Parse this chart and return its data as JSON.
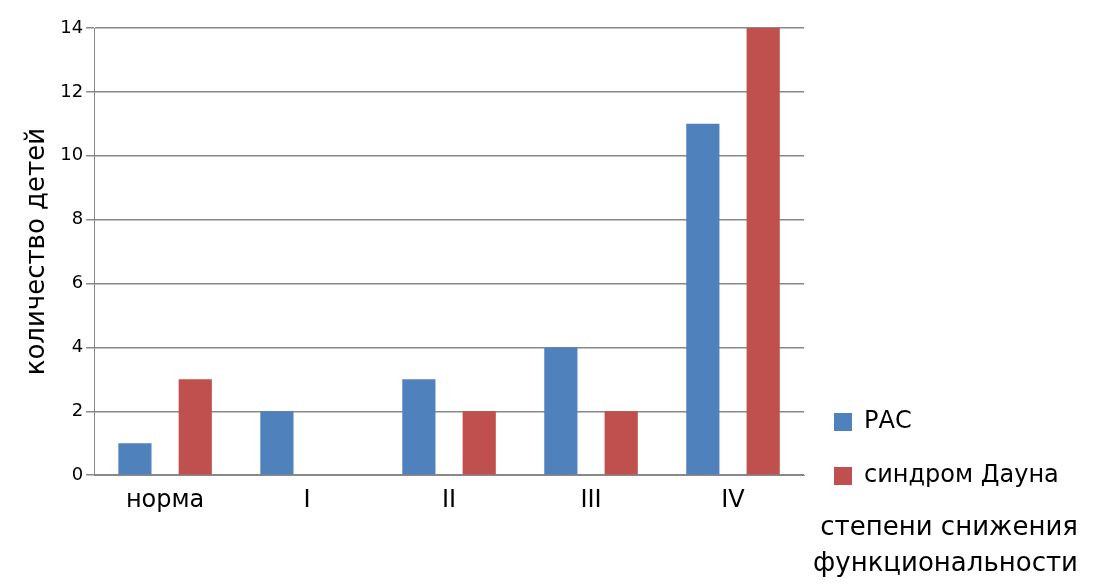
{
  "chart_data": {
    "type": "bar",
    "ylabel": "количество детей",
    "xlabel": "степени снижения функциональности",
    "categories": [
      "норма",
      "I",
      "II",
      "III",
      "IV"
    ],
    "series": [
      {
        "name": "РАС",
        "color": "#4f81bd",
        "values": [
          1,
          2,
          3,
          4,
          11
        ]
      },
      {
        "name": "синдром Дауна",
        "color": "#c0504d",
        "values": [
          3,
          0,
          2,
          2,
          14
        ]
      }
    ],
    "ylim": [
      0,
      14
    ],
    "yticks": [
      0,
      2,
      4,
      6,
      8,
      10,
      12,
      14
    ],
    "grid": "y",
    "legend": "right"
  }
}
